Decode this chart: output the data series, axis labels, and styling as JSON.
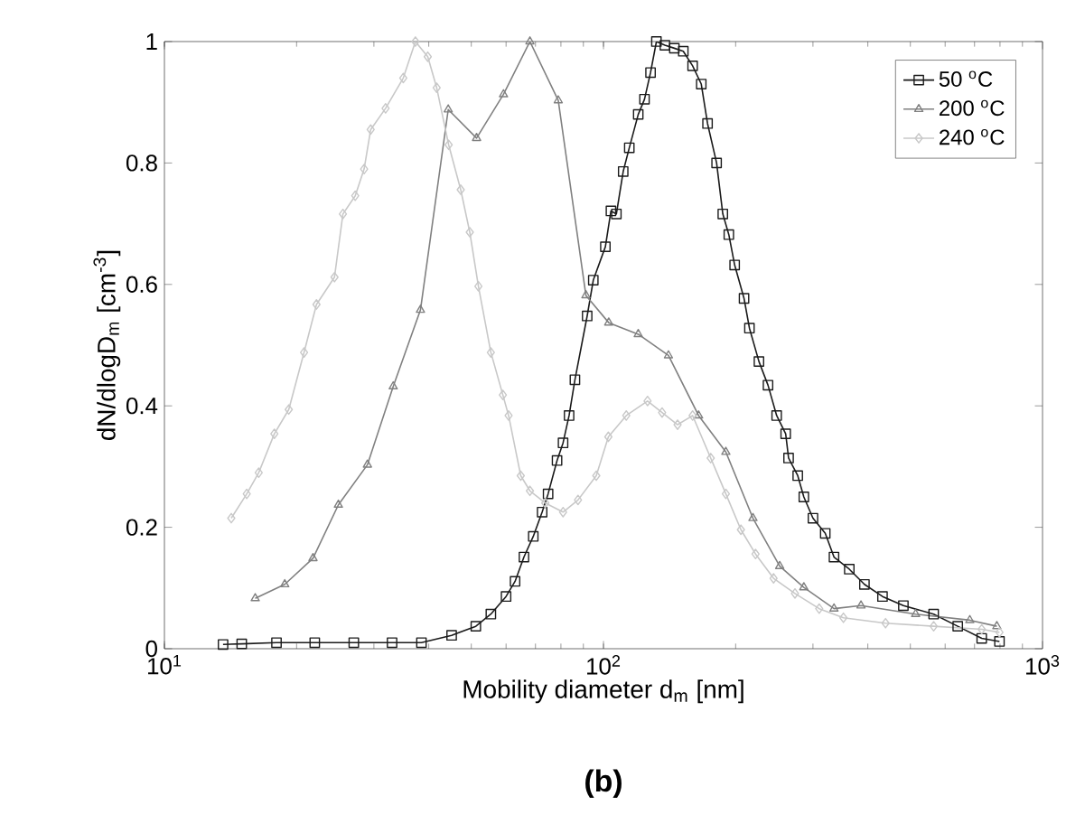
{
  "chart_data": {
    "type": "line",
    "xlabel": "Mobility diameter d$_{m}$ [nm]",
    "ylabel": "dN/dlogD$_{m}$ [cm$^{-3}$]",
    "annotations": [
      "**(b)**"
    ],
    "log": "x",
    "xlim": [
      10,
      1000
    ],
    "ylim": [
      0,
      1
    ],
    "xticks": [
      {
        "value": 10,
        "label": "10$^{1}$"
      },
      {
        "value": 100,
        "label": "10$^{2}$"
      },
      {
        "value": 1000,
        "label": "10$^{3}$"
      }
    ],
    "yticks": [
      0,
      0.2,
      0.4,
      0.6,
      0.8,
      1
    ],
    "grid": false,
    "legend": "top right",
    "line_style": "solid",
    "series": [
      {
        "name": "50 $^{o}$C",
        "color": "#1a1a1a",
        "marker": "square",
        "x": [
          13.6,
          15,
          18,
          22,
          27,
          33,
          38.5,
          45.1,
          51.2,
          55.4,
          60,
          62.9,
          65.9,
          69.2,
          72.5,
          74.8,
          78.4,
          80.9,
          83.5,
          86.1,
          91.8,
          94.8,
          101,
          104,
          107,
          110.9,
          114.5,
          120,
          124,
          128,
          132,
          138,
          145,
          152,
          159.6,
          167,
          172.6,
          181,
          187,
          193,
          199,
          209,
          215,
          226,
          237,
          248,
          260,
          264,
          277,
          286,
          300,
          320,
          335,
          363,
          393,
          432,
          482,
          565,
          641,
          727,
          798
        ],
        "values": [
          0.007,
          0.008,
          0.01,
          0.01,
          0.01,
          0.01,
          0.01,
          0.022,
          0.037,
          0.057,
          0.086,
          0.111,
          0.151,
          0.185,
          0.225,
          0.255,
          0.31,
          0.339,
          0.384,
          0.443,
          0.548,
          0.607,
          0.662,
          0.721,
          0.716,
          0.786,
          0.825,
          0.88,
          0.905,
          0.949,
          1.0,
          0.994,
          0.989,
          0.984,
          0.96,
          0.93,
          0.865,
          0.8,
          0.716,
          0.682,
          0.632,
          0.577,
          0.528,
          0.473,
          0.434,
          0.384,
          0.354,
          0.314,
          0.285,
          0.25,
          0.215,
          0.19,
          0.151,
          0.131,
          0.106,
          0.086,
          0.071,
          0.057,
          0.037,
          0.017,
          0.012
        ]
      },
      {
        "name": "200 $^{o}$C",
        "color": "#808080",
        "marker": "triangle",
        "x": [
          16.1,
          18.8,
          21.8,
          24.9,
          29.0,
          33.2,
          38.3,
          44.3,
          51.4,
          59.2,
          68.0,
          78.9,
          91.2,
          102.8,
          120,
          140.6,
          164.7,
          190,
          219,
          252,
          286,
          335,
          386,
          514,
          683,
          787
        ],
        "values": [
          0.083,
          0.106,
          0.149,
          0.237,
          0.303,
          0.432,
          0.558,
          0.888,
          0.841,
          0.913,
          1.0,
          0.903,
          0.582,
          0.537,
          0.518,
          0.483,
          0.384,
          0.324,
          0.215,
          0.136,
          0.101,
          0.066,
          0.071,
          0.057,
          0.047,
          0.037
        ]
      },
      {
        "name": "240 $^{o}$C",
        "color": "#c8c8c8",
        "marker": "diamond",
        "x": [
          14.2,
          15.4,
          16.4,
          17.8,
          19.2,
          20.8,
          22.2,
          24.4,
          25.5,
          27.2,
          28.5,
          29.5,
          31.9,
          35.0,
          37.3,
          39.8,
          41.7,
          44.4,
          47.3,
          49.6,
          51.9,
          55.4,
          59.0,
          60.8,
          64.8,
          68.0,
          73.7,
          80.9,
          87.5,
          96.3,
          102.6,
          112.7,
          126,
          136,
          147.5,
          159.6,
          175.5,
          190,
          205.6,
          222,
          244,
          273,
          310,
          352,
          439,
          565,
          727,
          798
        ],
        "values": [
          0.215,
          0.255,
          0.29,
          0.354,
          0.394,
          0.488,
          0.567,
          0.612,
          0.716,
          0.746,
          0.79,
          0.855,
          0.89,
          0.94,
          1.0,
          0.975,
          0.924,
          0.83,
          0.756,
          0.686,
          0.597,
          0.488,
          0.418,
          0.384,
          0.285,
          0.26,
          0.24,
          0.225,
          0.245,
          0.285,
          0.349,
          0.384,
          0.408,
          0.389,
          0.369,
          0.384,
          0.314,
          0.255,
          0.196,
          0.156,
          0.116,
          0.091,
          0.066,
          0.051,
          0.042,
          0.037,
          0.032,
          0.027
        ]
      }
    ]
  }
}
